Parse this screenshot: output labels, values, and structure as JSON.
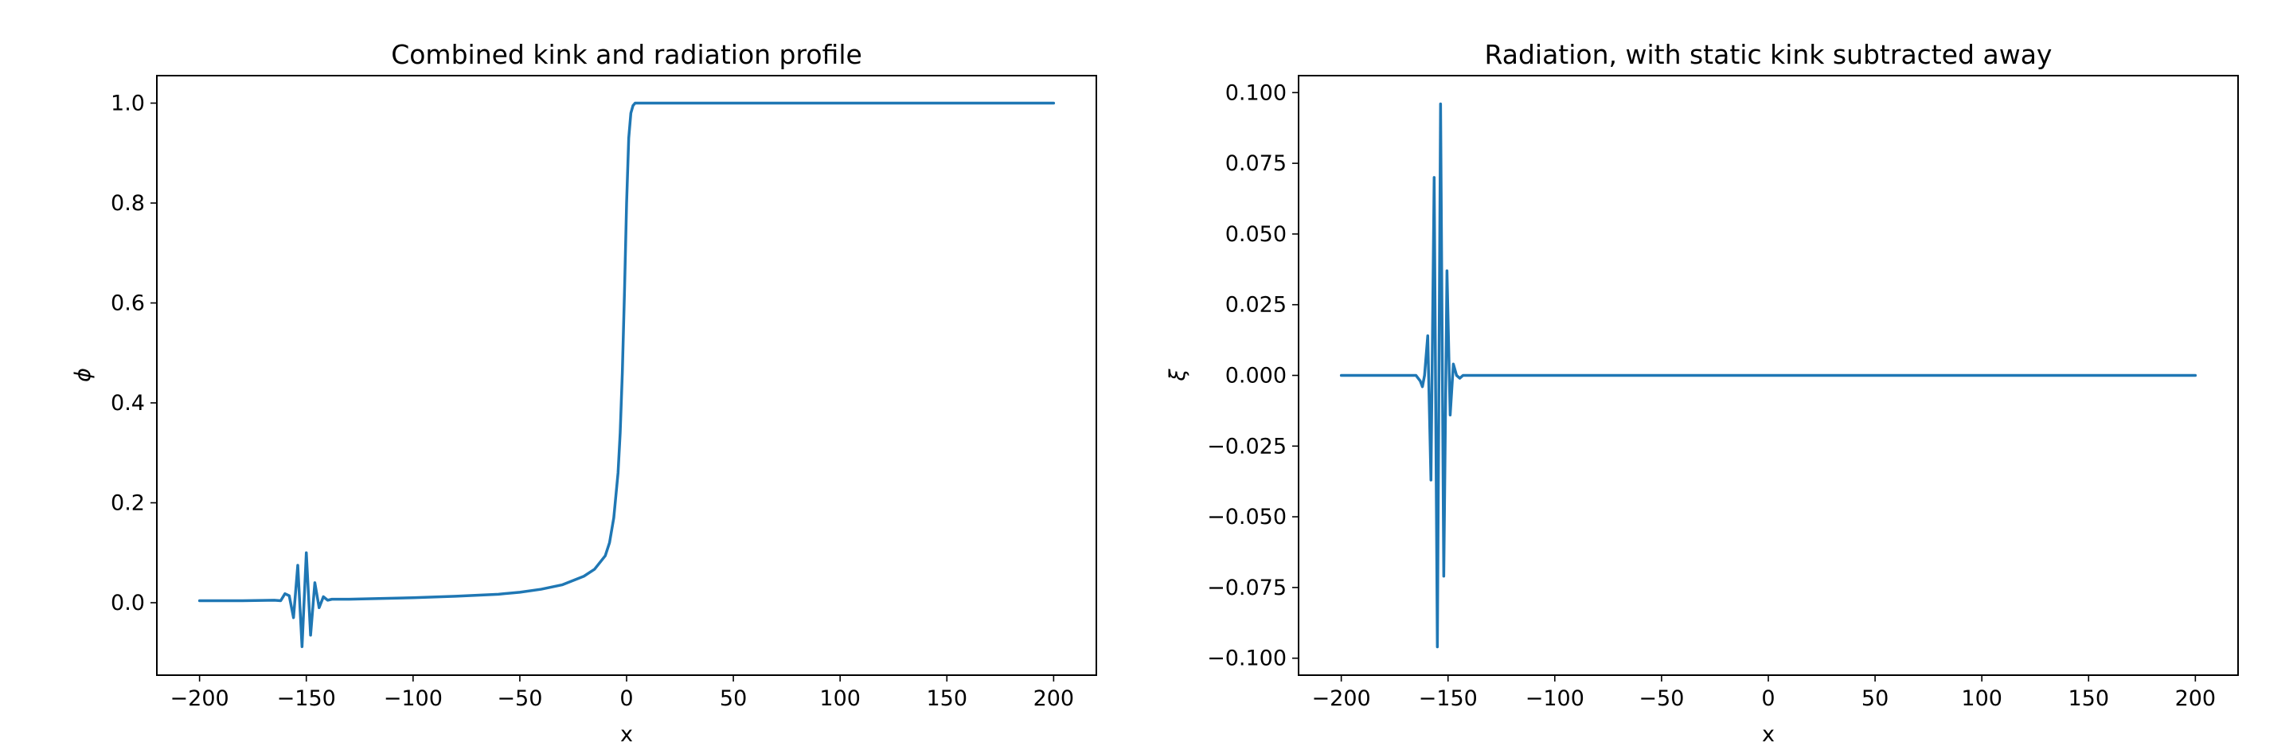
{
  "colors": {
    "line": "#1f77b4",
    "axes": "#000000",
    "background": "#ffffff"
  },
  "chart_data": [
    {
      "type": "line",
      "title": "Combined kink and radiation profile",
      "xlabel": "x",
      "ylabel": "ϕ",
      "xlim": [
        -220,
        220
      ],
      "ylim": [
        -0.145,
        1.055
      ],
      "xticks": [
        -200,
        -150,
        -100,
        -50,
        0,
        50,
        100,
        150,
        200
      ],
      "xtick_labels": [
        "−200",
        "−150",
        "−100",
        "−50",
        "0",
        "50",
        "100",
        "150",
        "200"
      ],
      "yticks": [
        0.0,
        0.2,
        0.4,
        0.6,
        0.8,
        1.0
      ],
      "ytick_labels": [
        "0.0",
        "0.2",
        "0.4",
        "0.6",
        "0.8",
        "1.0"
      ],
      "grid": false,
      "series": [
        {
          "x": [
            -200,
            -180,
            -165,
            -162,
            -160,
            -158,
            -156,
            -154,
            -152,
            -150,
            -148,
            -146,
            -144,
            -142,
            -140,
            -138,
            -135,
            -130,
            -120,
            -100,
            -80,
            -60,
            -50,
            -40,
            -30,
            -20,
            -15,
            -10,
            -8,
            -6,
            -4,
            -3,
            -2,
            -1,
            0,
            1,
            2,
            3,
            4,
            6,
            8,
            10,
            20,
            50,
            100,
            150,
            200
          ],
          "y": [
            0.004,
            0.004,
            0.005,
            0.004,
            0.018,
            0.014,
            -0.03,
            0.075,
            -0.088,
            0.1,
            -0.065,
            0.04,
            -0.01,
            0.012,
            0.005,
            0.007,
            0.007,
            0.007,
            0.008,
            0.01,
            0.013,
            0.017,
            0.021,
            0.027,
            0.036,
            0.053,
            0.067,
            0.094,
            0.12,
            0.17,
            0.26,
            0.34,
            0.46,
            0.62,
            0.8,
            0.93,
            0.98,
            0.995,
            1.0,
            1.0,
            1.0,
            1.0,
            1.0,
            1.0,
            1.0,
            1.0,
            1.0
          ]
        }
      ]
    },
    {
      "type": "line",
      "title": "Radiation, with static kink subtracted away",
      "xlabel": "x",
      "ylabel": "ξ",
      "xlim": [
        -220,
        220
      ],
      "ylim": [
        -0.106,
        0.106
      ],
      "xticks": [
        -200,
        -150,
        -100,
        -50,
        0,
        50,
        100,
        150,
        200
      ],
      "xtick_labels": [
        "−200",
        "−150",
        "−100",
        "−50",
        "0",
        "50",
        "100",
        "150",
        "200"
      ],
      "yticks": [
        -0.1,
        -0.075,
        -0.05,
        -0.025,
        0.0,
        0.025,
        0.05,
        0.075,
        0.1
      ],
      "ytick_labels": [
        "−0.100",
        "−0.075",
        "−0.050",
        "−0.025",
        "0.000",
        "0.025",
        "0.050",
        "0.075",
        "0.100"
      ],
      "grid": false,
      "series": [
        {
          "x": [
            -200,
            -170,
            -165,
            -163,
            -162,
            -161,
            -159.5,
            -158,
            -156.5,
            -155,
            -153.5,
            -152,
            -150.5,
            -149,
            -147.5,
            -146,
            -144.5,
            -143,
            -141.5,
            -140,
            -138.5,
            -137,
            -135,
            -130,
            0,
            200
          ],
          "y": [
            0.0,
            0.0,
            0.0,
            -0.002,
            -0.004,
            0.0,
            0.014,
            -0.037,
            0.07,
            -0.096,
            0.096,
            -0.071,
            0.037,
            -0.014,
            0.004,
            0.0,
            -0.001,
            0.0,
            0.0,
            0.0,
            0.0,
            0.0,
            0.0,
            0.0,
            0.0,
            0.0
          ]
        }
      ]
    }
  ]
}
